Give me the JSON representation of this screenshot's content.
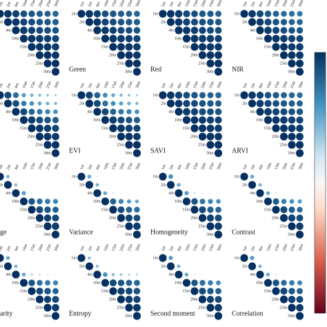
{
  "scales": [
    "1m",
    "2m",
    "4m",
    "10m",
    "15m",
    "20m",
    "25m",
    "30m"
  ],
  "clim": [
    -1,
    1
  ],
  "colorscale": [
    [
      -1,
      "#67001f"
    ],
    [
      -0.6,
      "#d6604d"
    ],
    [
      -0.2,
      "#fddbc7"
    ],
    [
      0,
      "#f7f7f7"
    ],
    [
      0.2,
      "#d1e5f0"
    ],
    [
      0.6,
      "#4393c3"
    ],
    [
      1,
      "#053061"
    ]
  ],
  "chart_data": [
    {
      "type": "correlogram",
      "matrix": [
        [
          1,
          0.97,
          0.93,
          0.88,
          0.85,
          0.82,
          0.8,
          0.78
        ],
        [
          1,
          0.97,
          0.92,
          0.89,
          0.86,
          0.84,
          0.82
        ],
        [
          1,
          0.96,
          0.93,
          0.9,
          0.88,
          0.86
        ],
        [
          1,
          0.98,
          0.96,
          0.94,
          0.92
        ],
        [
          1,
          0.98,
          0.97,
          0.95
        ],
        [
          1,
          0.99,
          0.97
        ],
        [
          1,
          0.99
        ],
        [
          1
        ]
      ]
    },
    {
      "type": "correlogram",
      "title": "Green",
      "matrix": [
        [
          1,
          0.97,
          0.93,
          0.88,
          0.85,
          0.82,
          0.8,
          0.78
        ],
        [
          1,
          0.97,
          0.92,
          0.89,
          0.86,
          0.84,
          0.82
        ],
        [
          1,
          0.96,
          0.93,
          0.9,
          0.88,
          0.86
        ],
        [
          1,
          0.98,
          0.96,
          0.94,
          0.92
        ],
        [
          1,
          0.98,
          0.97,
          0.95
        ],
        [
          1,
          0.99,
          0.97
        ],
        [
          1,
          0.99
        ],
        [
          1
        ]
      ]
    },
    {
      "type": "correlogram",
      "title": "Red",
      "matrix": [
        [
          1,
          0.98,
          0.95,
          0.9,
          0.87,
          0.85,
          0.83,
          0.8
        ],
        [
          1,
          0.97,
          0.93,
          0.9,
          0.88,
          0.86,
          0.84
        ],
        [
          1,
          0.97,
          0.94,
          0.92,
          0.9,
          0.88
        ],
        [
          1,
          0.98,
          0.96,
          0.95,
          0.93
        ],
        [
          1,
          0.99,
          0.97,
          0.96
        ],
        [
          1,
          0.99,
          0.98
        ],
        [
          1,
          0.99
        ],
        [
          1
        ]
      ]
    },
    {
      "type": "correlogram",
      "title": "NIR",
      "matrix": [
        [
          1,
          0.96,
          0.9,
          0.84,
          0.8,
          0.77,
          0.75,
          0.72
        ],
        [
          1,
          0.96,
          0.9,
          0.86,
          0.83,
          0.8,
          0.78
        ],
        [
          1,
          0.95,
          0.91,
          0.88,
          0.86,
          0.84
        ],
        [
          1,
          0.98,
          0.95,
          0.93,
          0.91
        ],
        [
          1,
          0.98,
          0.96,
          0.95
        ],
        [
          1,
          0.99,
          0.97
        ],
        [
          1,
          0.99
        ],
        [
          1
        ]
      ]
    },
    {
      "type": "correlogram",
      "matrix": [
        [
          1,
          0.9,
          0.75,
          0.55,
          0.45,
          0.4,
          0.35,
          0.3
        ],
        [
          1,
          0.88,
          0.7,
          0.6,
          0.52,
          0.47,
          0.42
        ],
        [
          1,
          0.9,
          0.8,
          0.72,
          0.66,
          0.6
        ],
        [
          1,
          0.95,
          0.9,
          0.86,
          0.82
        ],
        [
          1,
          0.97,
          0.94,
          0.91
        ],
        [
          1,
          0.98,
          0.96
        ],
        [
          1,
          0.99
        ],
        [
          1
        ]
      ]
    },
    {
      "type": "correlogram",
      "title": "EVI",
      "matrix": [
        [
          1,
          0.92,
          0.8,
          0.62,
          0.5,
          0.42,
          0.36,
          0.3
        ],
        [
          1,
          0.9,
          0.75,
          0.62,
          0.54,
          0.48,
          0.42
        ],
        [
          1,
          0.9,
          0.8,
          0.72,
          0.66,
          0.6
        ],
        [
          1,
          0.95,
          0.9,
          0.86,
          0.82
        ],
        [
          1,
          0.97,
          0.94,
          0.91
        ],
        [
          1,
          0.98,
          0.96
        ],
        [
          1,
          0.99
        ],
        [
          1
        ]
      ]
    },
    {
      "type": "correlogram",
      "title": "SAVI",
      "matrix": [
        [
          1,
          0.97,
          0.93,
          0.88,
          0.85,
          0.82,
          0.8,
          0.78
        ],
        [
          1,
          0.97,
          0.92,
          0.89,
          0.86,
          0.84,
          0.82
        ],
        [
          1,
          0.96,
          0.93,
          0.9,
          0.88,
          0.86
        ],
        [
          1,
          0.98,
          0.96,
          0.94,
          0.92
        ],
        [
          1,
          0.98,
          0.97,
          0.95
        ],
        [
          1,
          0.99,
          0.97
        ],
        [
          1,
          0.99
        ],
        [
          1
        ]
      ]
    },
    {
      "type": "correlogram",
      "title": "ARVI",
      "matrix": [
        [
          1,
          0.96,
          0.92,
          0.86,
          0.83,
          0.8,
          0.78,
          0.75
        ],
        [
          1,
          0.96,
          0.91,
          0.87,
          0.84,
          0.82,
          0.8
        ],
        [
          1,
          0.96,
          0.92,
          0.9,
          0.87,
          0.85
        ],
        [
          1,
          0.98,
          0.96,
          0.94,
          0.92
        ],
        [
          1,
          0.98,
          0.97,
          0.95
        ],
        [
          1,
          0.99,
          0.97
        ],
        [
          1,
          0.99
        ],
        [
          1
        ]
      ]
    },
    {
      "type": "correlogram",
      "title": "ge",
      "matrix": [
        [
          1,
          0.45,
          0.12,
          0.03,
          0.01,
          -0.02,
          -0.03,
          -0.05
        ],
        [
          1,
          0.4,
          0.1,
          0.05,
          0.02,
          0,
          -0.02
        ],
        [
          1,
          0.55,
          0.2,
          0.1,
          0.05,
          0.03
        ],
        [
          1,
          0.85,
          0.75,
          0.7,
          0.65
        ],
        [
          1,
          0.9,
          0.85,
          0.8
        ],
        [
          1,
          0.93,
          0.9
        ],
        [
          1,
          0.95
        ],
        [
          1
        ]
      ]
    },
    {
      "type": "correlogram",
      "title": "Variance",
      "matrix": [
        [
          1,
          0.5,
          0.2,
          0.08,
          0.05,
          0.03,
          0.02,
          -0.03
        ],
        [
          1,
          0.45,
          0.15,
          0.08,
          0.05,
          0.03,
          0.02
        ],
        [
          1,
          0.5,
          0.22,
          0.15,
          0.1,
          0.08
        ],
        [
          1,
          0.8,
          0.65,
          0.55,
          0.5
        ],
        [
          1,
          0.88,
          0.8,
          0.75
        ],
        [
          1,
          0.92,
          0.88
        ],
        [
          1,
          0.95
        ],
        [
          1
        ]
      ]
    },
    {
      "type": "correlogram",
      "title": "Homogeneity",
      "matrix": [
        [
          1,
          0.6,
          0.15,
          0.05,
          -0.05,
          -0.08,
          -0.1,
          -0.12
        ],
        [
          1,
          0.5,
          0.12,
          0.05,
          0.02,
          -0.02,
          -0.05
        ],
        [
          1,
          0.55,
          0.25,
          0.15,
          0.1,
          0.08
        ],
        [
          1,
          0.85,
          0.72,
          0.65,
          0.6
        ],
        [
          1,
          0.9,
          0.82,
          0.78
        ],
        [
          1,
          0.93,
          0.9
        ],
        [
          1,
          0.95
        ],
        [
          1
        ]
      ]
    },
    {
      "type": "correlogram",
      "title": "Contrast",
      "matrix": [
        [
          1,
          0.5,
          0.15,
          0.05,
          0.02,
          0,
          -0.02,
          -0.04
        ],
        [
          1,
          0.45,
          0.12,
          0.06,
          0.03,
          0.02,
          0
        ],
        [
          1,
          0.5,
          0.2,
          0.12,
          0.08,
          0.05
        ],
        [
          1,
          0.82,
          0.68,
          0.6,
          0.55
        ],
        [
          1,
          0.9,
          0.82,
          0.76
        ],
        [
          1,
          0.93,
          0.89
        ],
        [
          1,
          0.95
        ],
        [
          1
        ]
      ]
    },
    {
      "type": "correlogram",
      "title": "arity",
      "matrix": [
        [
          1,
          0.5,
          0.15,
          0.05,
          0.02,
          0,
          -0.02,
          -0.03
        ],
        [
          1,
          0.45,
          0.12,
          0.06,
          0.03,
          0.02,
          0
        ],
        [
          1,
          0.5,
          0.3,
          0.25,
          0.2,
          0.18
        ],
        [
          1,
          0.85,
          0.75,
          0.7,
          0.65
        ],
        [
          1,
          0.9,
          0.85,
          0.8
        ],
        [
          1,
          0.93,
          0.9
        ],
        [
          1,
          0.95
        ],
        [
          1
        ]
      ]
    },
    {
      "type": "correlogram",
      "title": "Entropy",
      "matrix": [
        [
          1,
          0.4,
          0.15,
          0.05,
          0.02,
          0,
          -0.02,
          -0.03
        ],
        [
          1,
          0.4,
          0.12,
          0.06,
          0.03,
          0.02,
          0
        ],
        [
          1,
          0.6,
          0.4,
          0.35,
          0.3,
          0.28
        ],
        [
          1,
          0.9,
          0.85,
          0.8,
          0.78
        ],
        [
          1,
          0.93,
          0.9,
          0.86
        ],
        [
          1,
          0.95,
          0.92
        ],
        [
          1,
          0.97
        ],
        [
          1
        ]
      ]
    },
    {
      "type": "correlogram",
      "title": "Second moment",
      "matrix": [
        [
          1,
          0.55,
          0.1,
          0,
          -0.03,
          -0.05,
          -0.08,
          -0.1
        ],
        [
          1,
          0.45,
          0.1,
          0.03,
          0,
          -0.02,
          -0.04
        ],
        [
          1,
          0.5,
          0.2,
          0.12,
          0.08,
          0.05
        ],
        [
          1,
          0.85,
          0.75,
          0.68,
          0.62
        ],
        [
          1,
          0.9,
          0.84,
          0.8
        ],
        [
          1,
          0.93,
          0.9
        ],
        [
          1,
          0.95
        ],
        [
          1
        ]
      ]
    },
    {
      "type": "correlogram",
      "title": "Correlation",
      "matrix": [
        [
          1,
          0.55,
          0.1,
          0.03,
          -0.02,
          -0.05,
          -0.1,
          -0.15
        ],
        [
          1,
          0.45,
          0.12,
          0.05,
          0.02,
          0,
          -0.03
        ],
        [
          1,
          0.5,
          0.22,
          0.14,
          0.1,
          0.07
        ],
        [
          1,
          0.86,
          0.76,
          0.7,
          0.64
        ],
        [
          1,
          0.91,
          0.85,
          0.8
        ],
        [
          1,
          0.94,
          0.9
        ],
        [
          1,
          0.96
        ],
        [
          1
        ]
      ]
    }
  ]
}
